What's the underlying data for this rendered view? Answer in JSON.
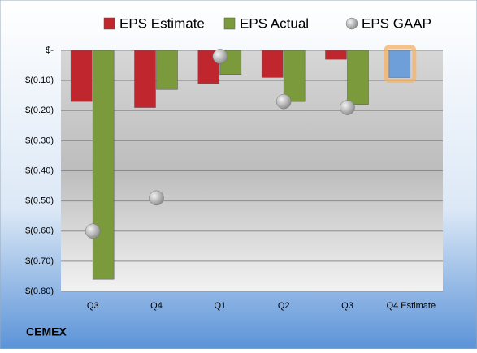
{
  "chart_data": {
    "type": "bar",
    "title": "CEMEX",
    "categories": [
      "Q3",
      "Q4",
      "Q1",
      "Q2",
      "Q3",
      "Q4 Estimate"
    ],
    "series": [
      {
        "name": "EPS Estimate",
        "color": "#c0262d",
        "colors": [
          "#c0262d",
          "#c0262d",
          "#c0262d",
          "#c0262d",
          "#c0262d",
          "#6f9fd8"
        ],
        "values": [
          -0.17,
          -0.19,
          -0.11,
          -0.09,
          -0.03,
          -0.09
        ]
      },
      {
        "name": "EPS Actual",
        "color": "#7a9a3c",
        "values": [
          -0.76,
          -0.13,
          -0.08,
          -0.17,
          -0.18,
          null
        ]
      },
      {
        "name": "EPS GAAP",
        "color": "#a8a8a8",
        "marker": "circle",
        "values": [
          -0.6,
          -0.49,
          -0.02,
          -0.17,
          -0.19,
          null
        ]
      }
    ],
    "ylim": [
      -0.8,
      0
    ],
    "yticks": [
      {
        "value": 0,
        "label": "$-"
      },
      {
        "value": -0.1,
        "label": "$(0.10)"
      },
      {
        "value": -0.2,
        "label": "$(0.20)"
      },
      {
        "value": -0.3,
        "label": "$(0.30)"
      },
      {
        "value": -0.4,
        "label": "$(0.40)"
      },
      {
        "value": -0.5,
        "label": "$(0.50)"
      },
      {
        "value": -0.6,
        "label": "$(0.60)"
      },
      {
        "value": -0.7,
        "label": "$(0.70)"
      },
      {
        "value": -0.8,
        "label": "$(0.80)"
      }
    ],
    "grid": true
  }
}
